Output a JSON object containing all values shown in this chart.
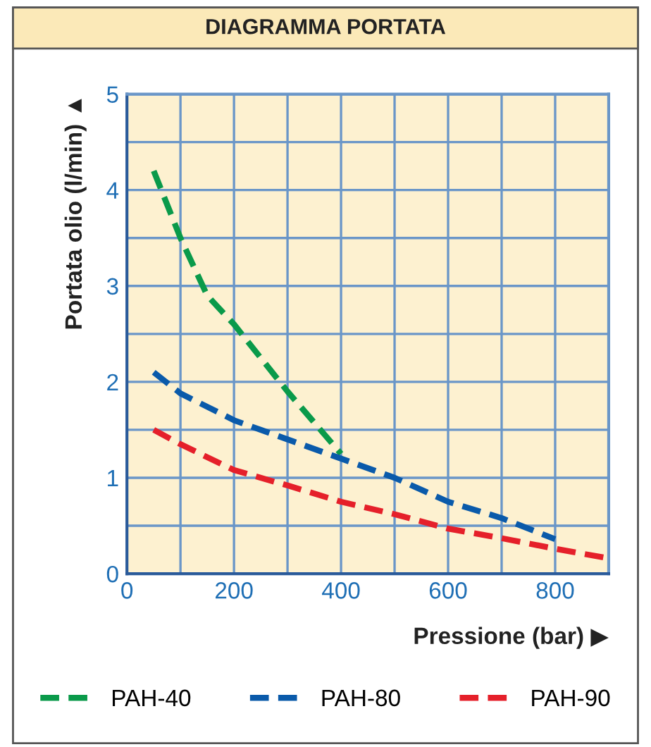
{
  "chart_data": {
    "type": "line",
    "title": "DIAGRAMMA PORTATA",
    "xlabel": "Pressione (bar) ▶",
    "ylabel": "Portata olio (l/min) ▲",
    "xlim": [
      0,
      900
    ],
    "xticks": [
      0,
      {
        "value": 100,
        "label": null
      },
      200,
      {
        "value": 300,
        "label": null
      },
      400,
      {
        "value": 500,
        "label": null
      },
      600,
      {
        "value": 700,
        "label": null
      },
      800,
      {
        "value": 900,
        "label": null
      }
    ],
    "ylim": [
      0,
      5
    ],
    "yticks": [
      0,
      {
        "value": 0.5,
        "label": null
      },
      1,
      {
        "value": 1.5,
        "label": null
      },
      2,
      {
        "value": 2.5,
        "label": null
      },
      3,
      {
        "value": 3.5,
        "label": null
      },
      4,
      {
        "value": 4.5,
        "label": null
      },
      5
    ],
    "grid": true,
    "legend": "bottom",
    "line_style": "dashed",
    "marker": "none",
    "series": [
      {
        "name": "PAH-40",
        "color": "#0a9a4a",
        "x": [
          50,
          100,
          150,
          200,
          300,
          400
        ],
        "values": [
          4.2,
          3.5,
          2.9,
          2.6,
          1.9,
          1.25
        ]
      },
      {
        "name": "PAH-80",
        "color": "#0a5aaa",
        "x": [
          50,
          100,
          200,
          300,
          400,
          500,
          600,
          700,
          800
        ],
        "values": [
          2.1,
          1.88,
          1.6,
          1.4,
          1.2,
          1.0,
          0.75,
          0.58,
          0.36
        ]
      },
      {
        "name": "PAH-90",
        "color": "#e5202a",
        "x": [
          50,
          100,
          200,
          300,
          400,
          500,
          600,
          700,
          800,
          900
        ],
        "values": [
          1.5,
          1.35,
          1.08,
          0.92,
          0.75,
          0.62,
          0.47,
          0.37,
          0.26,
          0.16
        ]
      }
    ]
  }
}
